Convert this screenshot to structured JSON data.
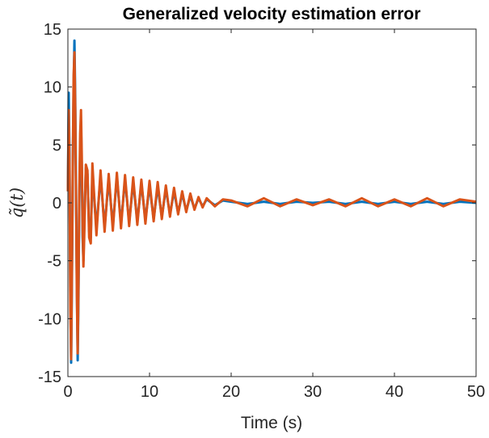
{
  "chart_data": {
    "type": "line",
    "title": "Generalized velocity estimation error",
    "xlabel": "Time (s)",
    "ylabel": "q̃(t)",
    "xlim": [
      0,
      50
    ],
    "ylim": [
      -15,
      15
    ],
    "xticks": [
      0,
      10,
      20,
      30,
      40,
      50
    ],
    "xtick_labels": [
      "0",
      "10",
      "20",
      "30",
      "40",
      "50"
    ],
    "yticks": [
      -15,
      -10,
      -5,
      0,
      5,
      10,
      15
    ],
    "ytick_labels": [
      "-15",
      "-10",
      "-5",
      "0",
      "5",
      "10",
      "15"
    ],
    "grid": false,
    "legend": "none",
    "series": [
      {
        "color": "#0072BD",
        "x": [
          0,
          0.1,
          0.2,
          0.3,
          0.4,
          0.5,
          0.6,
          0.7,
          0.8,
          0.9,
          1.0,
          1.1,
          1.2,
          1.3,
          1.4,
          1.5,
          1.6,
          1.7,
          1.8,
          1.9,
          2.0,
          2.2,
          2.4,
          2.6,
          2.8,
          3.0,
          3.5,
          4.0,
          4.5,
          5.0,
          5.5,
          6.0,
          6.5,
          7.0,
          7.5,
          8.0,
          8.5,
          9.0,
          9.5,
          10.0,
          10.5,
          11.0,
          11.5,
          12.0,
          12.5,
          13.0,
          13.5,
          14.0,
          14.5,
          15.0,
          15.5,
          16.0,
          16.5,
          17.0,
          18.0,
          19.0,
          20.0,
          22.0,
          24.0,
          26.0,
          28.0,
          30.0,
          32.0,
          34.0,
          36.0,
          38.0,
          40.0,
          42.0,
          44.0,
          46.0,
          48.0,
          50.0
        ],
        "y": [
          1.0,
          9.5,
          4.0,
          -8.0,
          -13.8,
          -7.0,
          3.0,
          10.0,
          14.0,
          9.0,
          1.0,
          -7.0,
          -13.6,
          -8.0,
          0.0,
          5.0,
          7.0,
          3.0,
          -3.0,
          -5.0,
          -2.0,
          3.0,
          2.5,
          -2.5,
          -3.0,
          2.5,
          -2.2,
          2.3,
          -2.1,
          2.0,
          -2.0,
          2.2,
          -1.8,
          2.0,
          -1.7,
          1.8,
          -1.6,
          1.7,
          -1.5,
          1.5,
          -1.4,
          1.4,
          -1.2,
          1.2,
          -1.0,
          1.0,
          -0.9,
          0.8,
          -0.7,
          0.6,
          -0.5,
          0.4,
          -0.3,
          0.3,
          -0.2,
          0.2,
          0.1,
          -0.1,
          0.1,
          -0.1,
          0.1,
          0.0,
          0.1,
          -0.1,
          0.1,
          -0.1,
          0.1,
          -0.1,
          0.1,
          -0.1,
          0.1,
          0.0
        ]
      },
      {
        "color": "#D95319",
        "x": [
          0,
          0.1,
          0.2,
          0.3,
          0.4,
          0.5,
          0.6,
          0.7,
          0.8,
          0.9,
          1.0,
          1.1,
          1.2,
          1.3,
          1.4,
          1.5,
          1.6,
          1.7,
          1.8,
          1.9,
          2.0,
          2.2,
          2.4,
          2.6,
          2.8,
          3.0,
          3.5,
          4.0,
          4.5,
          5.0,
          5.5,
          6.0,
          6.5,
          7.0,
          7.5,
          8.0,
          8.5,
          9.0,
          9.5,
          10.0,
          10.5,
          11.0,
          11.5,
          12.0,
          12.5,
          13.0,
          13.5,
          14.0,
          14.5,
          15.0,
          15.5,
          16.0,
          16.5,
          17.0,
          18.0,
          19.0,
          20.0,
          22.0,
          24.0,
          26.0,
          28.0,
          30.0,
          32.0,
          34.0,
          36.0,
          38.0,
          40.0,
          42.0,
          44.0,
          46.0,
          48.0,
          50.0
        ],
        "y": [
          1.0,
          8.0,
          3.0,
          -9.0,
          -13.5,
          -6.0,
          4.0,
          11.0,
          13.0,
          8.0,
          0.0,
          -8.0,
          -13.0,
          -7.0,
          1.0,
          6.0,
          8.0,
          4.0,
          -2.0,
          -5.5,
          -3.0,
          3.3,
          2.8,
          -3.0,
          -3.5,
          3.4,
          -2.8,
          2.8,
          -2.5,
          2.5,
          -2.4,
          2.6,
          -2.2,
          2.4,
          -2.0,
          2.2,
          -1.9,
          2.0,
          -1.8,
          1.9,
          -1.6,
          1.8,
          -1.4,
          1.5,
          -1.2,
          1.3,
          -1.0,
          1.0,
          -0.8,
          0.8,
          -0.6,
          0.5,
          -0.4,
          0.4,
          -0.3,
          0.3,
          0.2,
          -0.3,
          0.4,
          -0.3,
          0.3,
          -0.2,
          0.3,
          -0.3,
          0.4,
          -0.3,
          0.3,
          -0.3,
          0.4,
          -0.3,
          0.3,
          0.1
        ]
      }
    ]
  }
}
